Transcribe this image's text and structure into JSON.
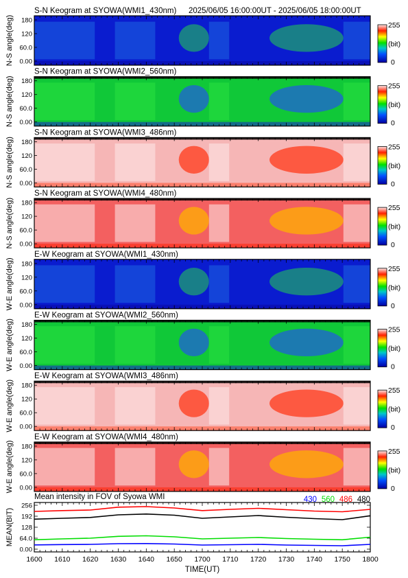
{
  "header": {
    "time_range": "2025/06/05 16:00:00UT - 2025/06/05 18:00:00UT"
  },
  "colorbar": {
    "max_label": "255",
    "unit_label": "(bit)",
    "min_label": "0"
  },
  "keograms": [
    {
      "title": "S-N Keogram at SYOWA(WMI1_430nm)",
      "ylabel": "N-S angle(deg)",
      "palette": "blue",
      "yticks": [
        "180",
        "120",
        "60.0",
        "0.00"
      ]
    },
    {
      "title": "S-N Keogram at SYOWA(WMI2_560nm)",
      "ylabel": "N-S angle(deg)",
      "palette": "green",
      "yticks": [
        "180",
        "120",
        "60.0",
        "0.00"
      ]
    },
    {
      "title": "S-N Keogram at SYOWA(WMI3_486nm)",
      "ylabel": "N-S angle(deg)",
      "palette": "pink",
      "yticks": [
        "180",
        "120",
        "60.0",
        "0.00"
      ]
    },
    {
      "title": "S-N Keogram at SYOWA(WMI4_480nm)",
      "ylabel": "N-S angle(deg)",
      "palette": "red",
      "yticks": [
        "180",
        "120",
        "60.0",
        "0.00"
      ]
    },
    {
      "title": "E-W Keogram at SYOWA(WMI1_430nm)",
      "ylabel": "W-E angle(deg)",
      "palette": "blue",
      "yticks": [
        "180",
        "120",
        "60.0",
        "0.00"
      ]
    },
    {
      "title": "E-W Keogram at SYOWA(WMI2_560nm)",
      "ylabel": "W-E angle(deg)",
      "palette": "green",
      "yticks": [
        "180",
        "120",
        "60.0",
        "0.00"
      ]
    },
    {
      "title": "E-W Keogram at SYOWA(WMI3_486nm)",
      "ylabel": "W-E angle(deg)",
      "palette": "pink",
      "yticks": [
        "180",
        "120",
        "60.0",
        "0.00"
      ]
    },
    {
      "title": "E-W Keogram at SYOWA(WMI4_480nm)",
      "ylabel": "W-E angle(deg)",
      "palette": "red",
      "yticks": [
        "180",
        "120",
        "60.0",
        "0.00"
      ]
    }
  ],
  "chart_data": {
    "type": "line",
    "title": "Mean intensity in FOV of Syowa WMI",
    "xlabel": "TIME(UT)",
    "ylabel": "MEAN(BIT)",
    "xlim": [
      1600,
      1800
    ],
    "ylim": [
      0,
      256
    ],
    "x_ticks": [
      "1600",
      "1610",
      "1620",
      "1630",
      "1640",
      "1650",
      "1700",
      "1710",
      "1720",
      "1730",
      "1740",
      "1750",
      "1800"
    ],
    "y_ticks": [
      "256",
      "192",
      "128",
      "64.0",
      "0.00"
    ],
    "x": [
      0,
      10,
      20,
      30,
      40,
      50,
      60,
      70,
      80,
      90,
      100,
      110,
      120
    ],
    "series": [
      {
        "name": "430",
        "color": "#0000ff",
        "values": [
          25,
          27,
          28,
          32,
          33,
          30,
          24,
          26,
          28,
          24,
          22,
          20,
          28
        ]
      },
      {
        "name": "560",
        "color": "#00dd00",
        "values": [
          55,
          60,
          64,
          75,
          78,
          72,
          60,
          64,
          68,
          62,
          58,
          55,
          70
        ]
      },
      {
        "name": "486",
        "color": "#ff0000",
        "values": [
          220,
          225,
          228,
          245,
          248,
          240,
          225,
          232,
          238,
          230,
          222,
          218,
          232
        ]
      },
      {
        "name": "480",
        "color": "#000000",
        "values": [
          175,
          180,
          185,
          200,
          205,
          198,
          180,
          188,
          196,
          186,
          178,
          172,
          195
        ]
      }
    ]
  }
}
